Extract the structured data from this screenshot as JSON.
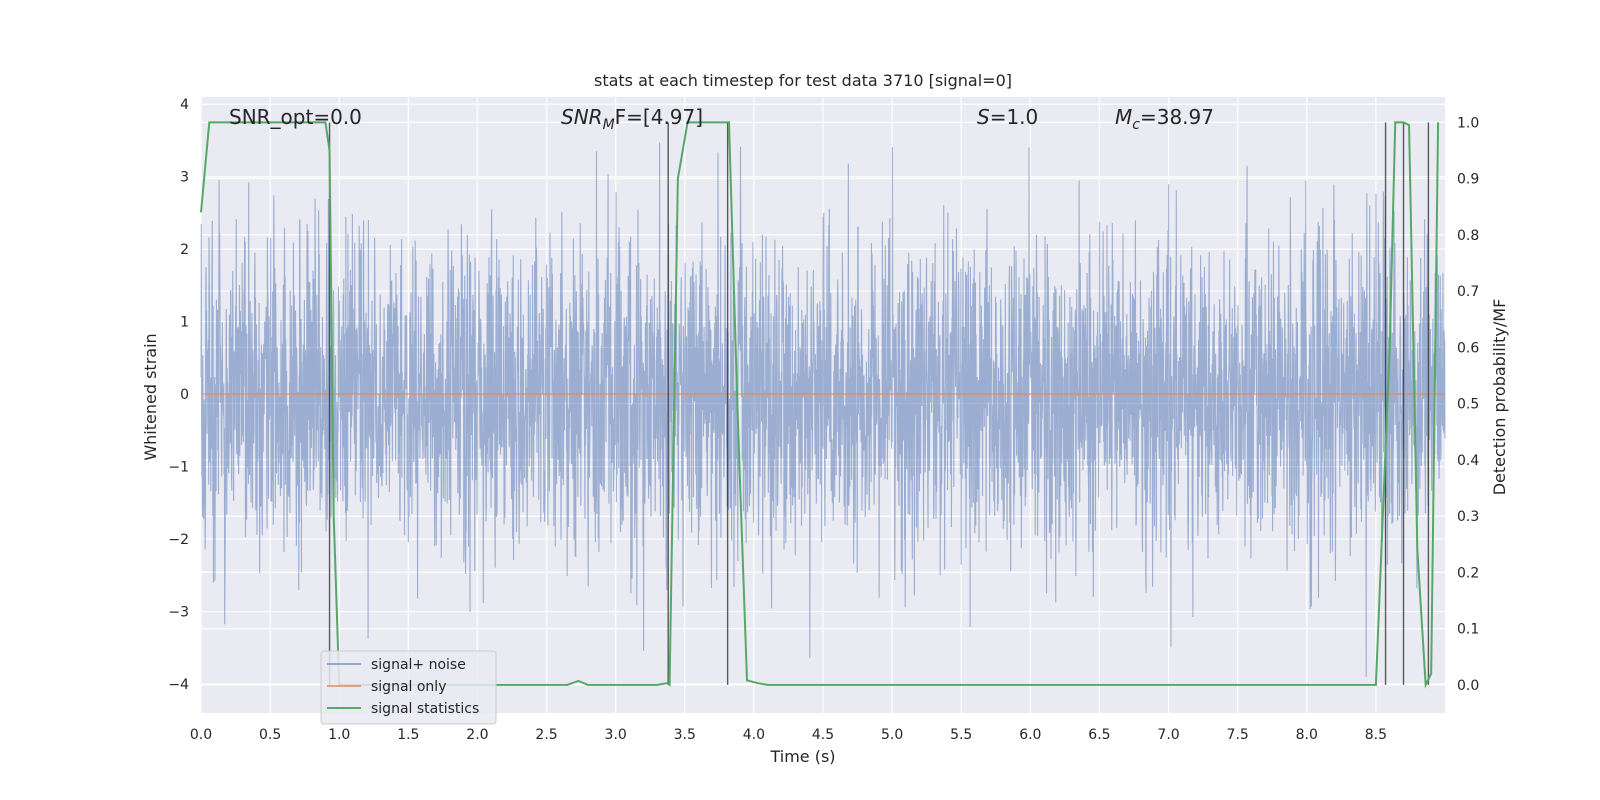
{
  "chart_data": {
    "type": "line",
    "title": "stats at each timestep for test data 3710 [signal=0]",
    "xlabel": "Time (s)",
    "ylabel": "Whitened strain",
    "ylabel_right": "Detection probability/MF",
    "xlim": [
      0,
      9.0
    ],
    "ylim": [
      -4.4,
      4.1
    ],
    "ylim_right": [
      -0.05,
      1.045
    ],
    "x_ticks": [
      "0.0",
      "0.5",
      "1.0",
      "1.5",
      "2.0",
      "2.5",
      "3.0",
      "3.5",
      "4.0",
      "4.5",
      "5.0",
      "5.5",
      "6.0",
      "6.5",
      "7.0",
      "7.5",
      "8.0",
      "8.5"
    ],
    "y_ticks": [
      "4",
      "3",
      "2",
      "1",
      "0",
      "−1",
      "−2",
      "−3",
      "−4"
    ],
    "y_ticks_right": [
      "1.0",
      "0.9",
      "0.8",
      "0.7",
      "0.6",
      "0.5",
      "0.4",
      "0.3",
      "0.2",
      "0.1",
      "0.0"
    ],
    "grid": true,
    "legend_position": "bottom-left",
    "annotations": {
      "snr_opt": "SNR_opt=0.0",
      "snr_mf_main": "SNR",
      "snr_mf_sub": "M",
      "snr_mf_rest": "F=[4.97]",
      "s_italic": "S",
      "s_rest": "=1.0",
      "mc_main": "M",
      "mc_sub": "c",
      "mc_rest": "=38.97"
    },
    "series": [
      {
        "name": "signal+ noise",
        "color": "#4c72b0",
        "description": "dense whitened noise, roughly within ±1.7 with spikes up to about ±3.9",
        "envelope": [
          -1.7,
          1.7
        ],
        "max_spike": 3.9
      },
      {
        "name": "signal only",
        "color": "#dd8452",
        "x": [
          0,
          9.0
        ],
        "y": [
          0,
          0
        ]
      },
      {
        "name": "signal statistics",
        "color": "#55a868",
        "x": [
          0.0,
          0.06,
          0.12,
          0.2,
          0.5,
          0.86,
          0.9,
          0.93,
          0.96,
          1.0,
          1.02,
          1.5,
          2.0,
          2.5,
          2.65,
          2.73,
          2.8,
          3.0,
          3.3,
          3.37,
          3.39,
          3.45,
          3.52,
          3.6,
          3.7,
          3.78,
          3.82,
          3.88,
          3.95,
          4.03,
          4.1,
          4.2,
          5.0,
          6.0,
          7.0,
          8.0,
          8.5,
          8.6,
          8.64,
          8.7,
          8.74,
          8.8,
          8.86,
          8.9,
          8.95
        ],
        "y": [
          0.84,
          1.0,
          1.0,
          1.0,
          1.0,
          1.0,
          1.0,
          0.95,
          0.3,
          0.0,
          0.0,
          0.0,
          0.0,
          0.0,
          0.0,
          0.007,
          0.0,
          0.0,
          0.0,
          0.003,
          0.0,
          0.9,
          1.0,
          1.0,
          1.0,
          1.0,
          1.0,
          0.5,
          0.008,
          0.003,
          0.0,
          0.0,
          0.0,
          0.0,
          0.0,
          0.0,
          0.0,
          0.6,
          1.0,
          1.0,
          0.995,
          0.24,
          0.0,
          0.02,
          1.0
        ]
      }
    ],
    "vertical_lines_x": [
      0.93,
      3.38,
      3.81,
      8.57,
      8.7,
      8.88
    ]
  }
}
